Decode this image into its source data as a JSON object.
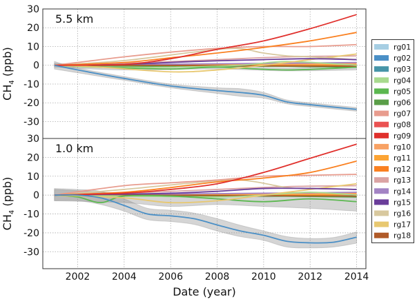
{
  "chart_data": {
    "type": "line",
    "xlabel": "Date (year)",
    "xlim": [
      2000.5,
      2014.4
    ],
    "xticks": [
      2002,
      2004,
      2006,
      2008,
      2010,
      2012,
      2014
    ],
    "grid": true,
    "legend_placement": "right-outside",
    "legend": [
      {
        "name": "rg01",
        "color": "#a6cee3"
      },
      {
        "name": "rg02",
        "color": "#4a8fc6"
      },
      {
        "name": "rg03",
        "color": "#4795a8"
      },
      {
        "name": "rg04",
        "color": "#a8da8e"
      },
      {
        "name": "rg05",
        "color": "#5cb850"
      },
      {
        "name": "rg06",
        "color": "#5a9e48"
      },
      {
        "name": "rg07",
        "color": "#e89c8e"
      },
      {
        "name": "rg08",
        "color": "#ea5252"
      },
      {
        "name": "rg09",
        "color": "#e0302c"
      },
      {
        "name": "rg10",
        "color": "#f8a264"
      },
      {
        "name": "rg11",
        "color": "#fca434"
      },
      {
        "name": "rg12",
        "color": "#fa8020"
      },
      {
        "name": "rg13",
        "color": "#dba4a4"
      },
      {
        "name": "rg14",
        "color": "#a384c4"
      },
      {
        "name": "rg15",
        "color": "#6a3d9a"
      },
      {
        "name": "rg16",
        "color": "#d8c89e"
      },
      {
        "name": "rg17",
        "color": "#e8c870"
      },
      {
        "name": "rg18",
        "color": "#b05a28"
      }
    ],
    "panels": [
      {
        "label": "5.5 km",
        "ylabel": "CH4 (ppb)",
        "ylabel_main": "CH",
        "ylabel_sub": "4",
        "ylabel_unit": " (ppb)",
        "ylim": [
          -39,
          30
        ],
        "yticks": [
          30,
          20,
          10,
          0,
          -10,
          -20,
          -30
        ],
        "bands": [
          {
            "series": "rg02",
            "x": [
              2001,
              2002,
              2004,
              2006,
              2008,
              2009,
              2010,
              2011,
              2012,
              2014
            ],
            "lower": [
              -2,
              -4,
              -8,
              -12,
              -15,
              -16.5,
              -17.5,
              -20.5,
              -22,
              -24.5
            ],
            "upper": [
              2,
              -1.5,
              -6,
              -10,
              -12,
              -12.5,
              -14.5,
              -18.5,
              -20,
              -22.5
            ]
          },
          {
            "series": "rg05",
            "x": [
              2001,
              2004,
              2008,
              2011,
              2014
            ],
            "lower": [
              -1,
              -2.5,
              -2,
              -3,
              -2.5
            ],
            "upper": [
              1,
              0,
              0,
              -1.5,
              0
            ]
          }
        ],
        "series": [
          {
            "name": "rg01",
            "x": [
              2001,
              2005,
              2010,
              2014
            ],
            "y": [
              0,
              0.3,
              0,
              -0.3
            ]
          },
          {
            "name": "rg03",
            "x": [
              2001,
              2005,
              2010,
              2014
            ],
            "y": [
              0,
              -0.3,
              -0.5,
              -0.5
            ]
          },
          {
            "name": "rg06",
            "x": [
              2001,
              2005,
              2010,
              2014
            ],
            "y": [
              0,
              -0.5,
              -0.5,
              -1
            ]
          },
          {
            "name": "rg08",
            "x": [
              2001,
              2005,
              2010,
              2014
            ],
            "y": [
              0,
              0.2,
              0.3,
              0.5
            ]
          },
          {
            "name": "rg10",
            "x": [
              2001,
              2005,
              2010,
              2014
            ],
            "y": [
              0,
              0.5,
              0.5,
              1
            ]
          },
          {
            "name": "rg11",
            "x": [
              2001,
              2005,
              2010,
              2014
            ],
            "y": [
              0,
              0.3,
              0,
              0.3
            ]
          },
          {
            "name": "rg14",
            "x": [
              2001,
              2005,
              2010,
              2014
            ],
            "y": [
              0,
              0.5,
              1,
              1.5
            ]
          },
          {
            "name": "rg18",
            "x": [
              2001,
              2005,
              2010,
              2014
            ],
            "y": [
              0,
              0,
              -0.3,
              -0.5
            ]
          },
          {
            "name": "rg13",
            "x": [
              2001,
              2004,
              2008,
              2011,
              2014
            ],
            "y": [
              0,
              1,
              3,
              4.5,
              5
            ]
          },
          {
            "name": "rg04",
            "x": [
              2001,
              2003,
              2006,
              2009,
              2011,
              2014
            ],
            "y": [
              0,
              -1,
              -1,
              0,
              2,
              0
            ]
          },
          {
            "name": "rg05",
            "x": [
              2001,
              2003,
              2006,
              2008,
              2011,
              2014
            ],
            "y": [
              0,
              -1,
              -2,
              -1,
              -2.5,
              -1
            ]
          },
          {
            "name": "rg17",
            "x": [
              2001,
              2003,
              2006,
              2008,
              2010,
              2012,
              2014
            ],
            "y": [
              0,
              -1,
              -3.5,
              -2.5,
              0,
              3,
              6
            ]
          },
          {
            "name": "rg16",
            "x": [
              2001,
              2004,
              2007,
              2008.8,
              2010,
              2011,
              2012,
              2014
            ],
            "y": [
              0,
              2.5,
              7,
              9,
              6.5,
              5,
              4.5,
              3
            ]
          },
          {
            "name": "rg15",
            "x": [
              2001,
              2004,
              2007,
              2010,
              2012,
              2014
            ],
            "y": [
              0,
              0.5,
              2,
              3,
              3.5,
              3
            ]
          },
          {
            "name": "rg07",
            "x": [
              2001,
              2002,
              2004,
              2006,
              2008,
              2010,
              2012,
              2014
            ],
            "y": [
              0,
              1.5,
              4.5,
              7,
              9,
              10,
              10,
              11
            ]
          },
          {
            "name": "rg12",
            "x": [
              2001,
              2004,
              2006,
              2008,
              2010,
              2012,
              2014
            ],
            "y": [
              0,
              1.5,
              4,
              6.5,
              9.5,
              13,
              17.5
            ]
          },
          {
            "name": "rg09",
            "x": [
              2001,
              2004,
              2006,
              2008,
              2010,
              2012,
              2014
            ],
            "y": [
              0,
              0.5,
              3.5,
              8.5,
              13,
              19.5,
              27
            ]
          },
          {
            "name": "rg02",
            "x": [
              2001,
              2002,
              2004,
              2006,
              2008,
              2009,
              2010,
              2011,
              2012,
              2014
            ],
            "y": [
              0,
              -2.5,
              -7,
              -11,
              -13.5,
              -14.5,
              -16,
              -19.5,
              -21,
              -23.5
            ]
          }
        ]
      },
      {
        "label": "1.0 km",
        "ylabel": "CH4 (ppb)",
        "ylabel_main": "CH",
        "ylabel_sub": "4",
        "ylabel_unit": " (ppb)",
        "ylim": [
          -39,
          30
        ],
        "yticks": [
          30,
          20,
          10,
          0,
          -10,
          -20,
          -30
        ],
        "bands": [
          {
            "series": "rg05",
            "x": [
              2001,
              2004,
              2006,
              2008,
              2010,
              2012,
              2014
            ],
            "lower": [
              -3,
              -4,
              -6,
              -5,
              -6,
              -7,
              -8.5
            ],
            "upper": [
              3,
              1,
              0,
              0,
              -1,
              0,
              0
            ]
          },
          {
            "series": "rg02",
            "x": [
              2001,
              2002,
              2003,
              2004,
              2005,
              2006,
              2007,
              2008,
              2009,
              2010,
              2011,
              2012,
              2013,
              2014
            ],
            "lower": [
              -3,
              -3,
              -5,
              -8.5,
              -13,
              -14,
              -15.5,
              -19,
              -22,
              -24,
              -27.5,
              -28,
              -27.5,
              -25.5
            ],
            "upper": [
              3.5,
              3,
              2,
              -2,
              -7,
              -8,
              -9.5,
              -12.5,
              -16,
              -19,
              -22,
              -23,
              -22.5,
              -19.5
            ]
          }
        ],
        "series": [
          {
            "name": "rg01",
            "x": [
              2001,
              2005,
              2010,
              2014
            ],
            "y": [
              0,
              0.3,
              0,
              -0.3
            ]
          },
          {
            "name": "rg03",
            "x": [
              2001,
              2005,
              2010,
              2014
            ],
            "y": [
              0,
              -0.3,
              -0.5,
              -0.5
            ]
          },
          {
            "name": "rg06",
            "x": [
              2001,
              2005,
              2010,
              2014
            ],
            "y": [
              0,
              -0.5,
              -0.5,
              -1
            ]
          },
          {
            "name": "rg08",
            "x": [
              2001,
              2005,
              2010,
              2014
            ],
            "y": [
              0,
              0.2,
              0.3,
              0.5
            ]
          },
          {
            "name": "rg10",
            "x": [
              2001,
              2005,
              2010,
              2014
            ],
            "y": [
              0,
              0.5,
              0.5,
              1
            ]
          },
          {
            "name": "rg11",
            "x": [
              2001,
              2005,
              2010,
              2014
            ],
            "y": [
              0,
              0.3,
              0,
              0.3
            ]
          },
          {
            "name": "rg14",
            "x": [
              2001,
              2005,
              2010,
              2014
            ],
            "y": [
              0,
              0.5,
              1,
              1.5
            ]
          },
          {
            "name": "rg18",
            "x": [
              2001,
              2005,
              2010,
              2014
            ],
            "y": [
              0,
              0,
              -0.3,
              -0.5
            ]
          },
          {
            "name": "rg13",
            "x": [
              2001,
              2004,
              2008,
              2011,
              2014
            ],
            "y": [
              0,
              1,
              3,
              4.5,
              5
            ]
          },
          {
            "name": "rg04",
            "x": [
              2001,
              2004,
              2008,
              2010,
              2012,
              2014
            ],
            "y": [
              0,
              -0.5,
              -1,
              0,
              1.5,
              0
            ]
          },
          {
            "name": "rg05",
            "x": [
              2001,
              2002,
              2003,
              2004,
              2006,
              2008,
              2010,
              2012,
              2014
            ],
            "y": [
              0,
              -1,
              -4,
              -0.5,
              -0.5,
              -2,
              -3.5,
              -2,
              -3.5
            ]
          },
          {
            "name": "rg17",
            "x": [
              2001,
              2004,
              2006,
              2008,
              2010,
              2012,
              2014
            ],
            "y": [
              0,
              -1.5,
              -4,
              -3,
              0,
              3,
              6
            ]
          },
          {
            "name": "rg16",
            "x": [
              2001,
              2004,
              2007,
              2009,
              2011,
              2012,
              2014
            ],
            "y": [
              0,
              3,
              6.5,
              8,
              4,
              3.5,
              3
            ]
          },
          {
            "name": "rg15",
            "x": [
              2001,
              2004,
              2006,
              2008,
              2010,
              2012,
              2014
            ],
            "y": [
              0,
              0.5,
              1,
              2,
              3.5,
              3.5,
              3
            ]
          },
          {
            "name": "rg07",
            "x": [
              2001,
              2004,
              2006,
              2008,
              2010,
              2012,
              2014
            ],
            "y": [
              0,
              5,
              6.5,
              8,
              10,
              10.5,
              11
            ]
          },
          {
            "name": "rg12",
            "x": [
              2001,
              2004,
              2006,
              2008,
              2010,
              2012,
              2014
            ],
            "y": [
              0,
              1.5,
              4,
              7,
              9,
              12,
              18
            ]
          },
          {
            "name": "rg09",
            "x": [
              2001,
              2004,
              2006,
              2008,
              2010,
              2012,
              2014
            ],
            "y": [
              0,
              1,
              3,
              6,
              12,
              19.5,
              27
            ]
          },
          {
            "name": "rg02",
            "x": [
              2001,
              2002,
              2003,
              2004,
              2005,
              2006,
              2007,
              2008,
              2009,
              2010,
              2011,
              2012,
              2013,
              2014
            ],
            "y": [
              0,
              0,
              -1.5,
              -5.5,
              -10,
              -11,
              -12.5,
              -15.8,
              -19,
              -21.3,
              -24.5,
              -25.3,
              -25,
              -22.3
            ]
          }
        ]
      }
    ]
  }
}
